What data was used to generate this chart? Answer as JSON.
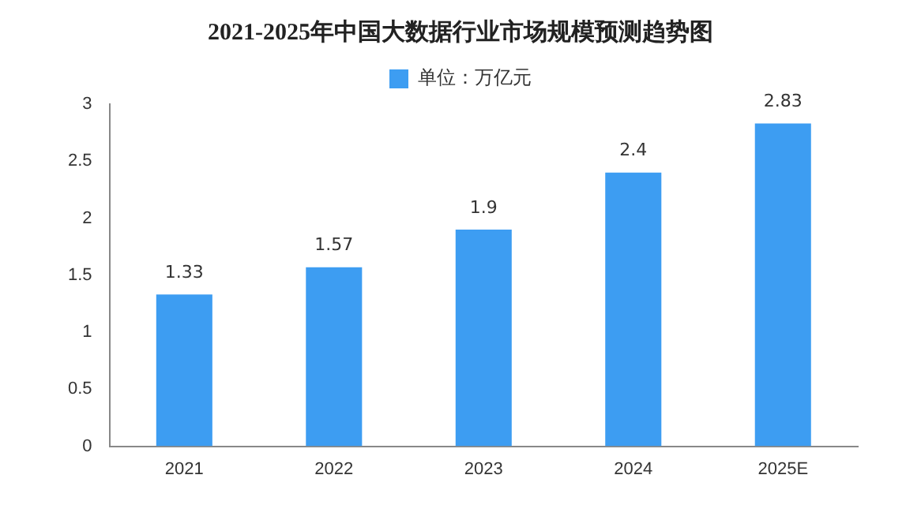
{
  "chart_data": {
    "type": "bar",
    "title": "2021-2025年中国大数据行业市场规模预测趋势图",
    "categories": [
      "2021",
      "2022",
      "2023",
      "2024",
      "2025E"
    ],
    "series": [
      {
        "name": "单位：万亿元",
        "color": "#3d9df2",
        "values": [
          1.33,
          1.57,
          1.9,
          2.4,
          2.83
        ]
      }
    ],
    "ylim": [
      0,
      3
    ],
    "yticks": [
      0,
      0.5,
      1,
      1.5,
      2,
      2.5,
      3
    ],
    "grid": false,
    "legend": "top",
    "data_labels": true
  }
}
